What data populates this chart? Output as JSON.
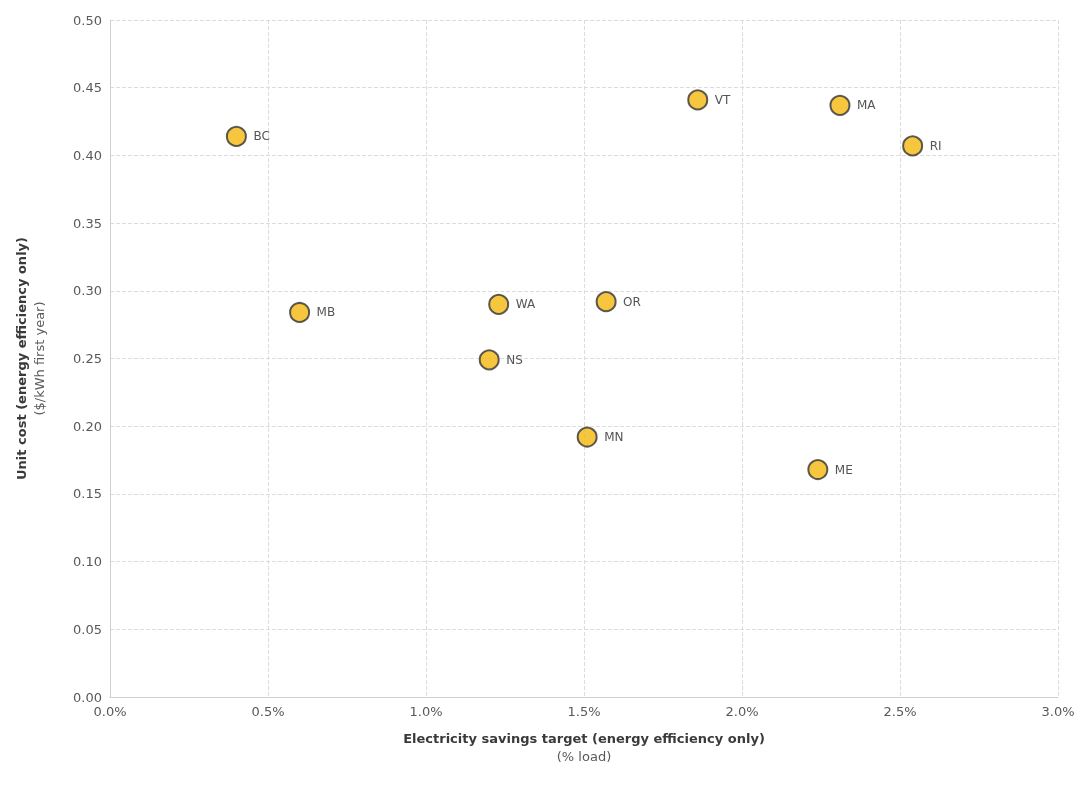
{
  "chart_data": {
    "type": "scatter",
    "xlabel": "Electricity savings target (energy efficiency only)\n(% load)",
    "ylabel": "Unit cost (energy efficiency only)\n($/kWh first year)",
    "series": [
      {
        "color": "#f5b80f",
        "x": [
          0.4,
          0.6,
          1.23,
          1.2,
          1.57,
          1.51,
          1.86,
          2.31,
          2.54,
          2.24
        ],
        "values": [
          0.414,
          0.284,
          0.29,
          0.249,
          0.292,
          0.192,
          0.441,
          0.437,
          0.407,
          0.168
        ]
      }
    ],
    "annotations": [
      {
        "text": "BC",
        "x": 0.4,
        "y": 0.414
      },
      {
        "text": "MB",
        "x": 0.6,
        "y": 0.284
      },
      {
        "text": "WA",
        "x": 1.23,
        "y": 0.29
      },
      {
        "text": "NS",
        "x": 1.2,
        "y": 0.249
      },
      {
        "text": "OR",
        "x": 1.57,
        "y": 0.292
      },
      {
        "text": "MN",
        "x": 1.51,
        "y": 0.192
      },
      {
        "text": "VT",
        "x": 1.86,
        "y": 0.441
      },
      {
        "text": "MA",
        "x": 2.31,
        "y": 0.437
      },
      {
        "text": "RI",
        "x": 2.54,
        "y": 0.407
      },
      {
        "text": "ME",
        "x": 2.24,
        "y": 0.168
      }
    ],
    "xlim": [
      0,
      3
    ],
    "xticks": [
      {
        "value": 0,
        "label": "0.0%"
      },
      {
        "value": 0.5,
        "label": "0.5%"
      },
      {
        "value": 1,
        "label": "1.0%"
      },
      {
        "value": 1.5,
        "label": "1.5%"
      },
      {
        "value": 2,
        "label": "2.0%"
      },
      {
        "value": 2.5,
        "label": "2.5%"
      },
      {
        "value": 3,
        "label": "3.0%"
      }
    ],
    "ylim": [
      0,
      0.5
    ],
    "yticks": [
      {
        "value": 0,
        "label": "0.00"
      },
      {
        "value": 0.05,
        "label": "0.05"
      },
      {
        "value": 0.1,
        "label": "0.10"
      },
      {
        "value": 0.15,
        "label": "0.15"
      },
      {
        "value": 0.2,
        "label": "0.20"
      },
      {
        "value": 0.25,
        "label": "0.25"
      },
      {
        "value": 0.3,
        "label": "0.30"
      },
      {
        "value": 0.35,
        "label": "0.35"
      },
      {
        "value": 0.4,
        "label": "0.40"
      },
      {
        "value": 0.45,
        "label": "0.45"
      },
      {
        "value": 0.5,
        "label": "0.50"
      }
    ],
    "grid": true,
    "marker": "circle"
  }
}
